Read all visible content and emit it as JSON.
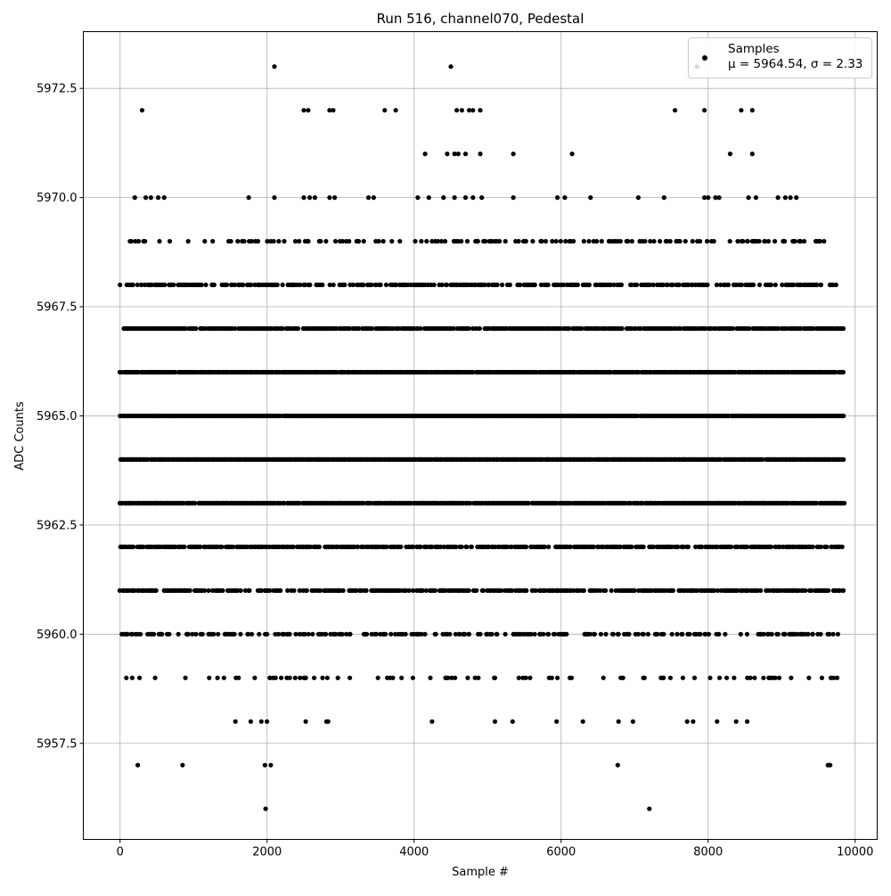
{
  "chart_data": {
    "type": "scatter",
    "title": "Run 516, channel070, Pedestal",
    "xlabel": "Sample #",
    "ylabel": "ADC Counts",
    "xlim": [
      -500,
      10300
    ],
    "ylim": [
      5955.3,
      5973.8
    ],
    "xticks": [
      0,
      2000,
      4000,
      6000,
      8000,
      10000
    ],
    "xtick_labels": [
      "0",
      "2000",
      "4000",
      "6000",
      "8000",
      "10000"
    ],
    "yticks": [
      5957.5,
      5960.0,
      5962.5,
      5965.0,
      5967.5,
      5970.0,
      5972.5
    ],
    "ytick_labels": [
      "5957.5",
      "5960.0",
      "5962.5",
      "5965.0",
      "5967.5",
      "5970.0",
      "5972.5"
    ],
    "grid": true,
    "legend_position": "top-right",
    "legend": {
      "label": "Samples",
      "stats": "μ = 5964.54, σ = 2.33"
    },
    "marker_color": "#000000",
    "n_samples": 9850,
    "series": [
      {
        "name": "Samples",
        "points": [
          [
            2100,
            5973
          ],
          [
            4500,
            5973
          ],
          [
            7850,
            5973
          ],
          [
            300,
            5972
          ],
          [
            2500,
            5972
          ],
          [
            2560,
            5972
          ],
          [
            2850,
            5972
          ],
          [
            2900,
            5972
          ],
          [
            3600,
            5972
          ],
          [
            3750,
            5972
          ],
          [
            4580,
            5972
          ],
          [
            4650,
            5972
          ],
          [
            4750,
            5972
          ],
          [
            4800,
            5972
          ],
          [
            4900,
            5972
          ],
          [
            7550,
            5972
          ],
          [
            7950,
            5972
          ],
          [
            8450,
            5972
          ],
          [
            8600,
            5972
          ],
          [
            4150,
            5971
          ],
          [
            4450,
            5971
          ],
          [
            4550,
            5971
          ],
          [
            4600,
            5971
          ],
          [
            4700,
            5971
          ],
          [
            4900,
            5971
          ],
          [
            5350,
            5971
          ],
          [
            6150,
            5971
          ],
          [
            8300,
            5971
          ],
          [
            8600,
            5971
          ],
          [
            200,
            5970
          ],
          [
            350,
            5970
          ],
          [
            420,
            5970
          ],
          [
            520,
            5970
          ],
          [
            600,
            5970
          ],
          [
            1750,
            5970
          ],
          [
            2100,
            5970
          ],
          [
            2500,
            5970
          ],
          [
            2580,
            5970
          ],
          [
            2650,
            5970
          ],
          [
            2850,
            5970
          ],
          [
            2920,
            5970
          ],
          [
            3380,
            5970
          ],
          [
            3450,
            5970
          ],
          [
            4050,
            5970
          ],
          [
            4200,
            5970
          ],
          [
            4400,
            5970
          ],
          [
            4550,
            5970
          ],
          [
            4700,
            5970
          ],
          [
            4800,
            5970
          ],
          [
            4920,
            5970
          ],
          [
            5350,
            5970
          ],
          [
            5950,
            5970
          ],
          [
            6050,
            5970
          ],
          [
            6400,
            5970
          ],
          [
            7050,
            5970
          ],
          [
            7400,
            5970
          ],
          [
            7950,
            5970
          ],
          [
            8000,
            5970
          ],
          [
            8100,
            5970
          ],
          [
            8150,
            5970
          ],
          [
            8550,
            5970
          ],
          [
            8650,
            5970
          ],
          [
            8950,
            5970
          ],
          [
            9050,
            5970
          ],
          [
            9120,
            5970
          ],
          [
            9200,
            5970
          ],
          [
            240,
            5957
          ],
          [
            850,
            5957
          ],
          [
            1970,
            5957
          ],
          [
            2050,
            5957
          ],
          [
            6770,
            5957
          ],
          [
            9630,
            5957
          ],
          [
            9660,
            5957
          ],
          [
            1980,
            5956
          ],
          [
            7200,
            5956
          ]
        ],
        "dense_bands": [
          {
            "y": 5969,
            "x_range": [
              100,
              9700
            ],
            "density": 0.3
          },
          {
            "y": 5968,
            "x_range": [
              0,
              9750
            ],
            "density": 0.55
          },
          {
            "y": 5967,
            "x_range": [
              50,
              9850
            ],
            "density": 0.85
          },
          {
            "y": 5966,
            "x_range": [
              0,
              9850
            ],
            "density": 0.95
          },
          {
            "y": 5965,
            "x_range": [
              0,
              9850
            ],
            "density": 0.98
          },
          {
            "y": 5964,
            "x_range": [
              0,
              9850
            ],
            "density": 0.98
          },
          {
            "y": 5963,
            "x_range": [
              0,
              9850
            ],
            "density": 0.95
          },
          {
            "y": 5962,
            "x_range": [
              0,
              9850
            ],
            "density": 0.75
          },
          {
            "y": 5961,
            "x_range": [
              0,
              9850
            ],
            "density": 0.65
          },
          {
            "y": 5960,
            "x_range": [
              0,
              9850
            ],
            "density": 0.4
          },
          {
            "y": 5959,
            "x_range": [
              50,
              9800
            ],
            "density": 0.15
          },
          {
            "y": 5958,
            "x_range": [
              950,
              9700
            ],
            "density": 0.03
          }
        ]
      }
    ]
  }
}
